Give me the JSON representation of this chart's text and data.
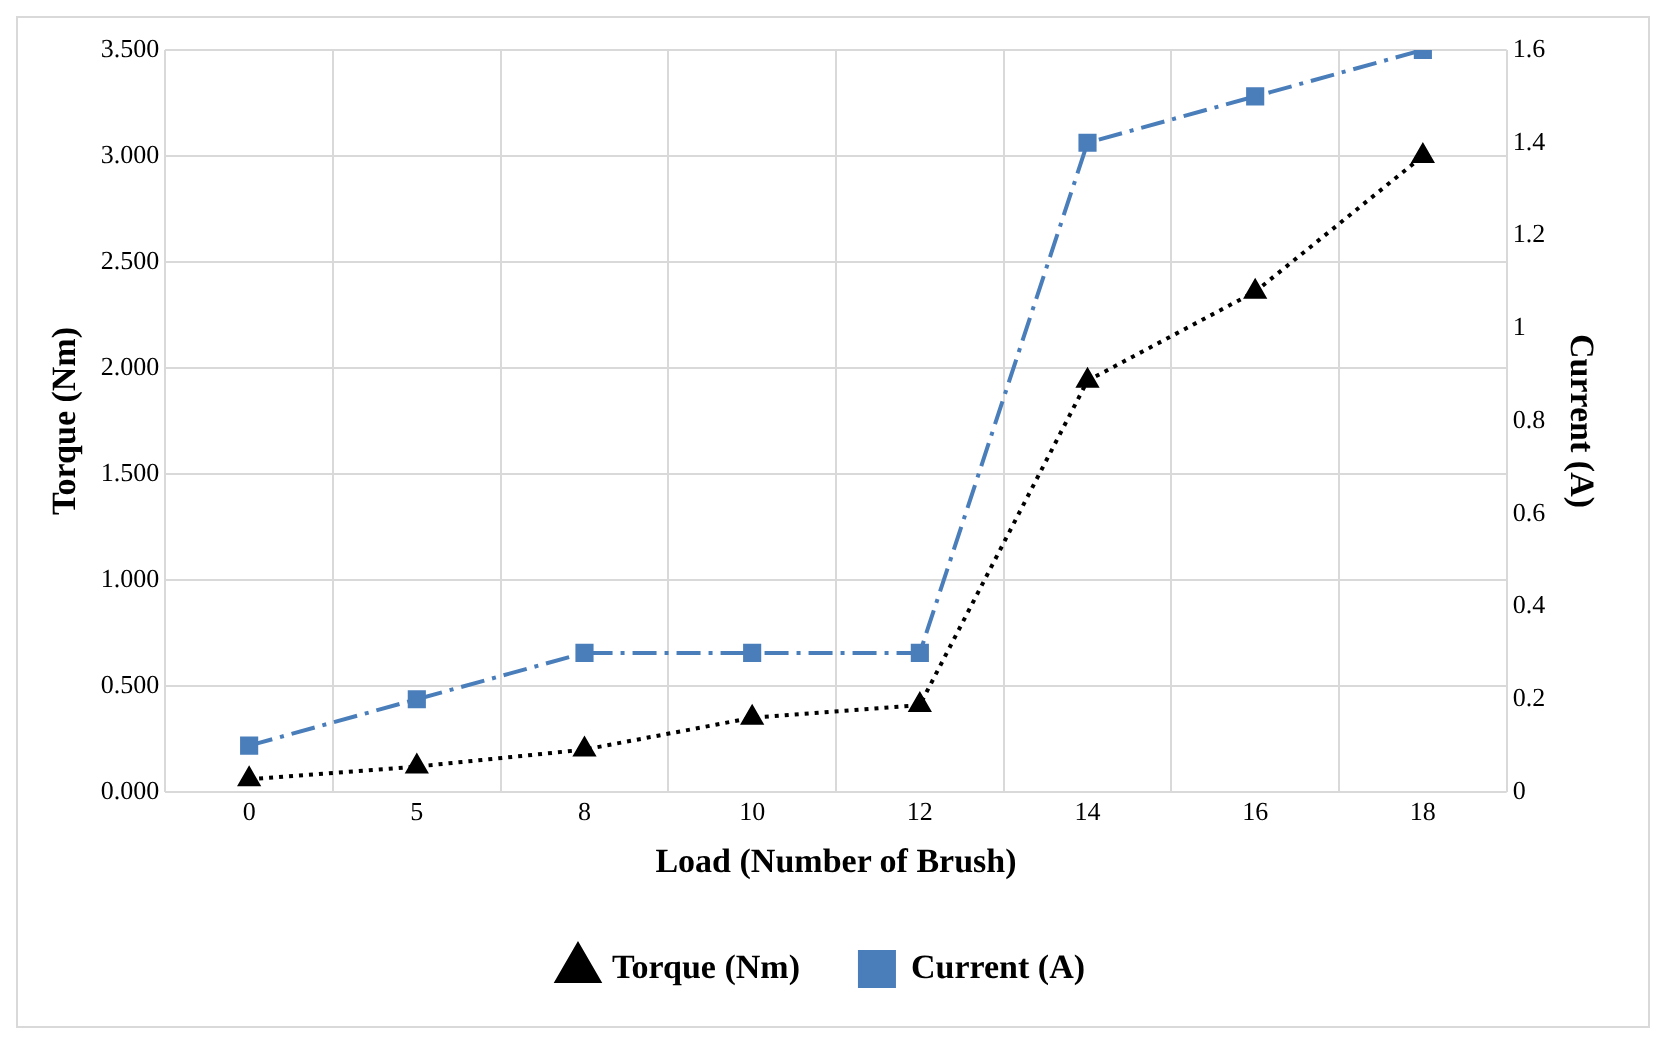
{
  "chart_data": {
    "type": "line",
    "xlabel": "Load (Number of Brush)",
    "ylabel": "Torque (Nm)",
    "y2label": "Current (A)",
    "categories": [
      "0",
      "5",
      "8",
      "10",
      "12",
      "14",
      "16",
      "18"
    ],
    "series": [
      {
        "name": "Torque (Nm)",
        "color": "#000000",
        "marker": "triangle",
        "line_style": "dotted",
        "values": [
          0.06,
          0.12,
          0.2,
          0.35,
          0.41,
          1.94,
          2.36,
          3.0
        ]
      },
      {
        "name": "Current (A)",
        "color": "#4a7ebb",
        "marker": "square",
        "line_style": "dashed",
        "axis": "y2",
        "values": [
          0.1,
          0.2,
          0.3,
          0.3,
          0.3,
          1.4,
          1.5,
          1.6
        ]
      }
    ],
    "ylim": [
      0,
      3.5
    ],
    "yticks": [
      {
        "value": 0,
        "label": "0.000"
      },
      {
        "value": 0.5,
        "label": "0.500"
      },
      {
        "value": 1,
        "label": "1.000"
      },
      {
        "value": 1.5,
        "label": "1.500"
      },
      {
        "value": 2,
        "label": "2.000"
      },
      {
        "value": 2.5,
        "label": "2.500"
      },
      {
        "value": 3,
        "label": "3.000"
      },
      {
        "value": 3.5,
        "label": "3.500"
      }
    ],
    "y2lim": [
      0,
      1.6
    ],
    "y2ticks": [
      0,
      0.2,
      0.4,
      0.6,
      0.8,
      1,
      1.2,
      1.4,
      1.6
    ],
    "grid": true,
    "legend": "bottom"
  }
}
